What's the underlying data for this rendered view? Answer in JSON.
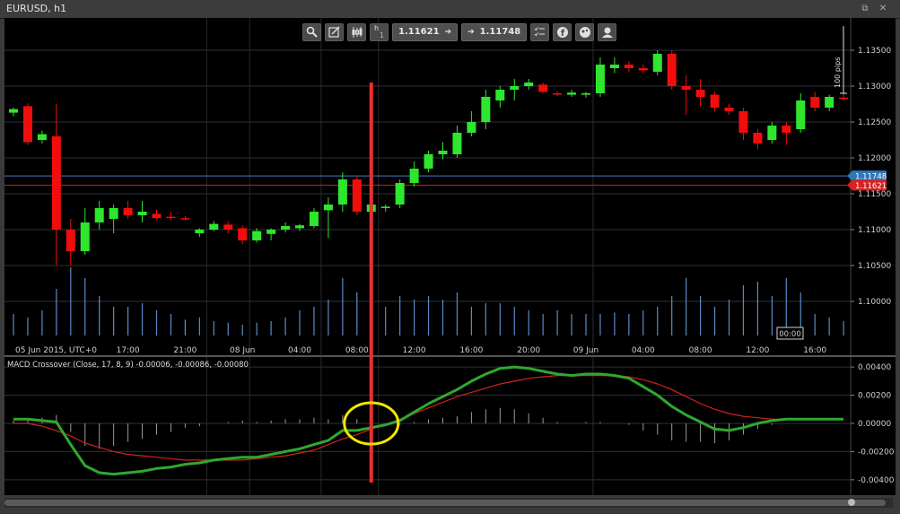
{
  "window": {
    "title": "EURUSD, h1",
    "btn_detach": "⧉",
    "btn_close": "✕"
  },
  "toolbar": {
    "timeframe_label": "h",
    "timeframe_value": "1",
    "sell_price": "1.11621",
    "buy_price": "1.11748",
    "arrow": "➔"
  },
  "colors": {
    "background": "#000000",
    "grid": "#2e3238",
    "bull": "#2ee62e",
    "bear": "#f20d0d",
    "volume": "#5a8cc8",
    "bid_line": "#c02020",
    "ask_line": "#4878c8",
    "macd_line": "#2fa82f",
    "signal_line": "#d42020",
    "annotation_line": "#e83030",
    "annotation_circle": "#f2e600"
  },
  "chart_data": [
    {
      "type": "candlestick",
      "symbol": "EURUSD",
      "timeframe": "h1",
      "ylim": [
        1.0955,
        1.139
      ],
      "y_ticks": [
        "1.13500",
        "1.13000",
        "1.12500",
        "1.12000",
        "1.11500",
        "1.11000",
        "1.10500",
        "1.10000"
      ],
      "y_tick_values": [
        1.135,
        1.13,
        1.125,
        1.12,
        1.115,
        1.11,
        1.105,
        1.1
      ],
      "x_labels": [
        {
          "i": 0,
          "label": "05 Jun 2015, UTC+0"
        },
        {
          "i": 8,
          "label": "17:00"
        },
        {
          "i": 12,
          "label": "21:00"
        },
        {
          "i": 16,
          "label": "08 Jun"
        },
        {
          "i": 20,
          "label": "04:00"
        },
        {
          "i": 24,
          "label": "08:00"
        },
        {
          "i": 28,
          "label": "12:00"
        },
        {
          "i": 32,
          "label": "16:00"
        },
        {
          "i": 36,
          "label": "20:00"
        },
        {
          "i": 40,
          "label": "09 Jun"
        },
        {
          "i": 44,
          "label": "04:00"
        },
        {
          "i": 48,
          "label": "08:00"
        },
        {
          "i": 52,
          "label": "12:00"
        },
        {
          "i": 56,
          "label": "16:00"
        }
      ],
      "vertical_gridlines_at": [
        13.5,
        16.5,
        21.5,
        25.5,
        40.5
      ],
      "pips_scale_label": "100 pips",
      "cursor_time_label": "00:00",
      "bid_price": 1.11621,
      "ask_price": 1.11748,
      "bid_label": "1.11621",
      "ask_label": "1.11748",
      "candles": [
        [
          1.1263,
          1.127,
          1.1258,
          1.1268
        ],
        [
          1.1272,
          1.1276,
          1.1218,
          1.1222
        ],
        [
          1.1225,
          1.1238,
          1.122,
          1.1233
        ],
        [
          1.123,
          1.1275,
          1.105,
          1.11
        ],
        [
          1.11,
          1.1115,
          1.105,
          1.107
        ],
        [
          1.107,
          1.113,
          1.1065,
          1.111
        ],
        [
          1.111,
          1.114,
          1.11,
          1.113
        ],
        [
          1.1115,
          1.1135,
          1.1095,
          1.113
        ],
        [
          1.113,
          1.114,
          1.1115,
          1.112
        ],
        [
          1.112,
          1.114,
          1.111,
          1.1125
        ],
        [
          1.1122,
          1.1128,
          1.1114,
          1.1116
        ],
        [
          1.1118,
          1.1125,
          1.1113,
          1.1117
        ],
        [
          1.1116,
          1.1119,
          1.1113,
          1.1115
        ],
        [
          1.1095,
          1.1102,
          1.109,
          1.11
        ],
        [
          1.11,
          1.1112,
          1.1098,
          1.1108
        ],
        [
          1.1107,
          1.1112,
          1.1095,
          1.11
        ],
        [
          1.1102,
          1.1106,
          1.108,
          1.1085
        ],
        [
          1.1085,
          1.1102,
          1.1082,
          1.1098
        ],
        [
          1.1094,
          1.1102,
          1.1085,
          1.11
        ],
        [
          1.11,
          1.111,
          1.1096,
          1.1105
        ],
        [
          1.1102,
          1.1108,
          1.1098,
          1.1106
        ],
        [
          1.1105,
          1.113,
          1.1102,
          1.1125
        ],
        [
          1.1127,
          1.1145,
          1.1088,
          1.1135
        ],
        [
          1.1135,
          1.118,
          1.1125,
          1.117
        ],
        [
          1.117,
          1.1175,
          1.112,
          1.1125
        ],
        [
          1.1125,
          1.115,
          1.1118,
          1.1135
        ],
        [
          1.113,
          1.1135,
          1.1125,
          1.1132
        ],
        [
          1.1135,
          1.117,
          1.113,
          1.1165
        ],
        [
          1.1165,
          1.1195,
          1.116,
          1.1185
        ],
        [
          1.1185,
          1.121,
          1.118,
          1.1205
        ],
        [
          1.1205,
          1.1222,
          1.1198,
          1.121
        ],
        [
          1.1205,
          1.1245,
          1.12,
          1.1235
        ],
        [
          1.1235,
          1.1265,
          1.123,
          1.125
        ],
        [
          1.125,
          1.1295,
          1.124,
          1.1285
        ],
        [
          1.128,
          1.13,
          1.127,
          1.1295
        ],
        [
          1.1295,
          1.131,
          1.128,
          1.13
        ],
        [
          1.13,
          1.131,
          1.1295,
          1.1305
        ],
        [
          1.1302,
          1.1305,
          1.129,
          1.1292
        ],
        [
          1.129,
          1.1293,
          1.1286,
          1.1289
        ],
        [
          1.1288,
          1.1295,
          1.1285,
          1.1291
        ],
        [
          1.1288,
          1.1292,
          1.1284,
          1.129
        ],
        [
          1.129,
          1.134,
          1.1285,
          1.133
        ],
        [
          1.1325,
          1.134,
          1.1318,
          1.133
        ],
        [
          1.133,
          1.1335,
          1.132,
          1.1325
        ],
        [
          1.1325,
          1.133,
          1.1318,
          1.1322
        ],
        [
          1.132,
          1.135,
          1.1315,
          1.1345
        ],
        [
          1.1345,
          1.135,
          1.1295,
          1.13
        ],
        [
          1.13,
          1.1315,
          1.126,
          1.1295
        ],
        [
          1.1295,
          1.131,
          1.1272,
          1.1285
        ],
        [
          1.1288,
          1.1292,
          1.1265,
          1.127
        ],
        [
          1.127,
          1.1275,
          1.126,
          1.1265
        ],
        [
          1.1265,
          1.127,
          1.1225,
          1.1235
        ],
        [
          1.1235,
          1.124,
          1.1212,
          1.122
        ],
        [
          1.1225,
          1.125,
          1.122,
          1.1245
        ],
        [
          1.1245,
          1.125,
          1.1218,
          1.1235
        ],
        [
          1.124,
          1.129,
          1.1235,
          1.128
        ],
        [
          1.1285,
          1.1292,
          1.1265,
          1.127
        ],
        [
          1.127,
          1.1288,
          1.1265,
          1.1285
        ],
        [
          1.1284,
          1.129,
          1.128,
          1.1282
        ]
      ],
      "volume": [
        0.3,
        0.25,
        0.35,
        0.65,
        0.95,
        0.8,
        0.55,
        0.4,
        0.4,
        0.45,
        0.35,
        0.3,
        0.22,
        0.25,
        0.2,
        0.18,
        0.15,
        0.18,
        0.2,
        0.25,
        0.35,
        0.4,
        0.5,
        0.8,
        0.6,
        0.45,
        0.4,
        0.55,
        0.5,
        0.55,
        0.5,
        0.6,
        0.4,
        0.45,
        0.45,
        0.4,
        0.35,
        0.3,
        0.35,
        0.3,
        0.3,
        0.3,
        0.32,
        0.3,
        0.35,
        0.4,
        0.55,
        0.8,
        0.55,
        0.4,
        0.5,
        0.7,
        0.75,
        0.55,
        0.8,
        0.6,
        0.3,
        0.25,
        0.2
      ]
    },
    {
      "type": "line",
      "title": "MACD Crossover (Close, 17, 8, 9) -0.00006, -0.00086, -0.00080",
      "ylim": [
        -0.0042,
        0.0042
      ],
      "y_ticks": [
        "0.00400",
        "0.00200",
        "0.00000",
        "-0.00200",
        "-0.00400"
      ],
      "y_tick_values": [
        0.004,
        0.002,
        0.0,
        -0.002,
        -0.004
      ],
      "series": [
        {
          "values": [
            0.0003,
            0.0003,
            0.0002,
            0.0001,
            -0.0015,
            -0.003,
            -0.0035,
            -0.0036,
            -0.0035,
            -0.0034,
            -0.0032,
            -0.0031,
            -0.0029,
            -0.0028,
            -0.0026,
            -0.0025,
            -0.0024,
            -0.0024,
            -0.0022,
            -0.002,
            -0.0018,
            -0.0015,
            -0.0012,
            -0.0005,
            -0.0005,
            -0.0003,
            -0.0001,
            0.0002,
            0.0008,
            0.0014,
            0.0019,
            0.0024,
            0.003,
            0.0035,
            0.0039,
            0.004,
            0.0039,
            0.0037,
            0.0035,
            0.0034,
            0.0035,
            0.0035,
            0.0034,
            0.0032,
            0.0026,
            0.002,
            0.0012,
            0.0006,
            0.0001,
            -0.0004,
            -0.0005,
            -0.0003,
            0.0,
            0.0002,
            0.0003,
            0.0003,
            0.0003,
            0.0003,
            0.0003
          ]
        },
        {
          "values": [
            0.0,
            0.0,
            -0.0002,
            -0.0005,
            -0.0009,
            -0.0014,
            -0.0017,
            -0.002,
            -0.0022,
            -0.0023,
            -0.0024,
            -0.0025,
            -0.0026,
            -0.0026,
            -0.0026,
            -0.0026,
            -0.0026,
            -0.0025,
            -0.0024,
            -0.0023,
            -0.0021,
            -0.0019,
            -0.0015,
            -0.0011,
            -0.0008,
            -0.0004,
            -0.0001,
            0.0003,
            0.0007,
            0.0011,
            0.0015,
            0.0019,
            0.0022,
            0.0025,
            0.0028,
            0.003,
            0.0032,
            0.0033,
            0.0034,
            0.0034,
            0.0034,
            0.0034,
            0.0034,
            0.0033,
            0.0031,
            0.0028,
            0.0024,
            0.0019,
            0.0014,
            0.001,
            0.0007,
            0.0005,
            0.0004,
            0.0003,
            0.0003,
            0.0003,
            0.0003,
            0.0003,
            0.0003
          ]
        }
      ],
      "histogram": [
        0.0002,
        0.0003,
        0.0004,
        0.0006,
        -0.0006,
        -0.0016,
        -0.0018,
        -0.0016,
        -0.0013,
        -0.0011,
        -0.0008,
        -0.0006,
        -0.0003,
        -0.0002,
        0.0,
        0.0001,
        0.0002,
        0.0001,
        0.0002,
        0.0003,
        0.0003,
        0.0004,
        0.0003,
        0.0006,
        0.0003,
        0.0001,
        0.0,
        -0.0001,
        0.0001,
        0.0003,
        0.0004,
        0.0005,
        0.0008,
        0.001,
        0.0011,
        0.001,
        0.0007,
        0.0004,
        0.0001,
        0.0,
        0.0001,
        0.0001,
        0.0,
        -0.0001,
        -0.0005,
        -0.0008,
        -0.0012,
        -0.0013,
        -0.0013,
        -0.0014,
        -0.0012,
        -0.0008,
        -0.0004,
        -0.0001,
        0.0,
        0.0,
        0.0,
        0.0,
        0.0
      ]
    }
  ],
  "annotations": {
    "vertical_line_index": 25.0,
    "circle_index": 25.0,
    "circle_value": 0.0
  }
}
